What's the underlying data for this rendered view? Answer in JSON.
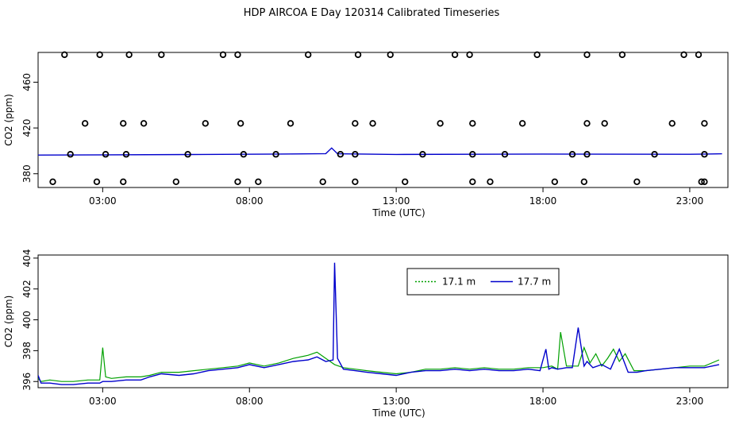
{
  "title": "HDP AIRCOA E  Day 120314  Calibrated Timeseries",
  "colors": {
    "series_17_1": "#00a000",
    "series_17_7": "#0000cc",
    "axis": "#000000"
  },
  "chart_data": [
    {
      "type": "line",
      "panel": "top",
      "xlabel": "Time (UTC)",
      "ylabel": "CO2 (ppm)",
      "xlim": [
        0.8,
        24.3
      ],
      "ylim": [
        368,
        486
      ],
      "xticks": [
        3,
        8,
        13,
        18,
        23
      ],
      "xtick_labels": [
        "03:00",
        "08:00",
        "13:00",
        "18:00",
        "23:00"
      ],
      "yticks": [
        380,
        420,
        460
      ],
      "ytick_labels": [
        "380",
        "420",
        "460"
      ],
      "grid": false,
      "legend": "none",
      "series": [
        {
          "values_x": [
            0.8,
            3.0,
            6.0,
            9.0,
            10.6,
            10.8,
            11.0,
            13.0,
            18.0,
            23.0,
            24.1
          ],
          "values_y": [
            396.3,
            396.5,
            396.8,
            397.2,
            397.6,
            402.5,
            397.4,
            396.9,
            397.2,
            397.0,
            397.4
          ]
        }
      ],
      "calibration_points": [
        {
          "x": 1.7,
          "y": 484
        },
        {
          "x": 1.3,
          "y": 373
        },
        {
          "x": 1.9,
          "y": 397
        },
        {
          "x": 2.4,
          "y": 424
        },
        {
          "x": 2.9,
          "y": 484
        },
        {
          "x": 2.8,
          "y": 373
        },
        {
          "x": 3.1,
          "y": 397
        },
        {
          "x": 3.7,
          "y": 424
        },
        {
          "x": 3.9,
          "y": 484
        },
        {
          "x": 3.7,
          "y": 373
        },
        {
          "x": 3.8,
          "y": 397
        },
        {
          "x": 4.4,
          "y": 424
        },
        {
          "x": 5.0,
          "y": 484
        },
        {
          "x": 5.5,
          "y": 373
        },
        {
          "x": 5.9,
          "y": 397
        },
        {
          "x": 6.5,
          "y": 424
        },
        {
          "x": 7.1,
          "y": 484
        },
        {
          "x": 7.6,
          "y": 373
        },
        {
          "x": 7.8,
          "y": 397
        },
        {
          "x": 7.7,
          "y": 424
        },
        {
          "x": 7.6,
          "y": 484
        },
        {
          "x": 8.3,
          "y": 373
        },
        {
          "x": 8.9,
          "y": 397
        },
        {
          "x": 9.4,
          "y": 424
        },
        {
          "x": 10.0,
          "y": 484
        },
        {
          "x": 10.5,
          "y": 373
        },
        {
          "x": 11.1,
          "y": 397
        },
        {
          "x": 11.6,
          "y": 424
        },
        {
          "x": 11.7,
          "y": 484
        },
        {
          "x": 11.6,
          "y": 373
        },
        {
          "x": 11.6,
          "y": 397
        },
        {
          "x": 12.2,
          "y": 424
        },
        {
          "x": 12.8,
          "y": 484
        },
        {
          "x": 13.3,
          "y": 373
        },
        {
          "x": 13.9,
          "y": 397
        },
        {
          "x": 14.5,
          "y": 424
        },
        {
          "x": 15.0,
          "y": 484
        },
        {
          "x": 15.6,
          "y": 373
        },
        {
          "x": 15.6,
          "y": 397
        },
        {
          "x": 15.6,
          "y": 424
        },
        {
          "x": 15.5,
          "y": 484
        },
        {
          "x": 16.2,
          "y": 373
        },
        {
          "x": 16.7,
          "y": 397
        },
        {
          "x": 17.3,
          "y": 424
        },
        {
          "x": 17.8,
          "y": 484
        },
        {
          "x": 18.4,
          "y": 373
        },
        {
          "x": 19.0,
          "y": 397
        },
        {
          "x": 19.5,
          "y": 424
        },
        {
          "x": 19.5,
          "y": 484
        },
        {
          "x": 19.4,
          "y": 373
        },
        {
          "x": 19.5,
          "y": 397
        },
        {
          "x": 20.1,
          "y": 424
        },
        {
          "x": 20.7,
          "y": 484
        },
        {
          "x": 21.2,
          "y": 373
        },
        {
          "x": 21.8,
          "y": 397
        },
        {
          "x": 22.4,
          "y": 424
        },
        {
          "x": 22.8,
          "y": 484
        },
        {
          "x": 23.4,
          "y": 373
        },
        {
          "x": 23.5,
          "y": 397
        },
        {
          "x": 23.5,
          "y": 424
        },
        {
          "x": 23.3,
          "y": 484
        },
        {
          "x": 23.5,
          "y": 373
        }
      ]
    },
    {
      "type": "line",
      "panel": "bottom",
      "xlabel": "Time (UTC)",
      "ylabel": "CO2 (ppm)",
      "xlim": [
        0.8,
        24.3
      ],
      "ylim": [
        395.6,
        404.2
      ],
      "xticks": [
        3,
        8,
        13,
        18,
        23
      ],
      "xtick_labels": [
        "03:00",
        "08:00",
        "13:00",
        "18:00",
        "23:00"
      ],
      "yticks": [
        396,
        398,
        400,
        402,
        404
      ],
      "ytick_labels": [
        "396",
        "398",
        "400",
        "402",
        "404"
      ],
      "grid": false,
      "legend": "top-center",
      "series": [
        {
          "name": "17.1 m",
          "values_x": [
            0.8,
            0.9,
            1.2,
            1.6,
            2.0,
            2.5,
            2.9,
            3.0,
            3.1,
            3.3,
            3.8,
            4.3,
            4.6,
            5.0,
            5.6,
            6.1,
            6.6,
            7.1,
            7.6,
            8.0,
            8.5,
            9.0,
            9.5,
            10.0,
            10.3,
            10.6,
            10.9,
            11.2,
            11.6,
            12.0,
            12.5,
            13.0,
            13.5,
            14.0,
            14.5,
            15.0,
            15.5,
            16.0,
            16.5,
            17.0,
            17.5,
            18.0,
            18.3,
            18.5,
            18.6,
            18.8,
            19.0,
            19.2,
            19.4,
            19.6,
            19.8,
            20.0,
            20.2,
            20.4,
            20.6,
            20.8,
            21.1,
            21.5,
            22.0,
            22.5,
            23.0,
            23.5,
            24.0
          ],
          "values_y": [
            396.2,
            396.0,
            396.1,
            396.0,
            396.0,
            396.1,
            396.1,
            398.2,
            396.3,
            396.2,
            396.3,
            396.3,
            396.4,
            396.6,
            396.6,
            396.7,
            396.8,
            396.9,
            397.0,
            397.2,
            397.0,
            397.2,
            397.5,
            397.7,
            397.9,
            397.5,
            397.1,
            396.9,
            396.8,
            396.7,
            396.6,
            396.5,
            396.6,
            396.8,
            396.8,
            396.9,
            396.8,
            396.9,
            396.8,
            396.8,
            396.9,
            396.9,
            397.0,
            396.8,
            399.2,
            397.0,
            397.0,
            397.0,
            398.2,
            397.2,
            397.8,
            397.0,
            397.5,
            398.1,
            397.3,
            397.8,
            396.7,
            396.7,
            396.8,
            396.9,
            397.0,
            397.0,
            397.4
          ]
        },
        {
          "name": "17.7 m",
          "values_x": [
            0.8,
            0.9,
            1.2,
            1.6,
            2.0,
            2.5,
            2.9,
            3.0,
            3.3,
            3.8,
            4.3,
            4.6,
            5.0,
            5.6,
            6.1,
            6.6,
            7.1,
            7.6,
            8.0,
            8.5,
            9.0,
            9.5,
            10.0,
            10.3,
            10.6,
            10.85,
            10.9,
            11.0,
            11.2,
            11.6,
            12.0,
            12.5,
            13.0,
            13.5,
            14.0,
            14.5,
            15.0,
            15.5,
            16.0,
            16.5,
            17.0,
            17.5,
            17.9,
            18.1,
            18.2,
            18.3,
            18.5,
            18.8,
            19.0,
            19.2,
            19.4,
            19.5,
            19.7,
            20.0,
            20.3,
            20.6,
            20.9,
            21.2,
            21.5,
            22.0,
            22.5,
            23.0,
            23.5,
            24.0
          ],
          "values_y": [
            396.4,
            395.9,
            395.9,
            395.8,
            395.8,
            395.9,
            395.9,
            396.0,
            396.0,
            396.1,
            396.1,
            396.3,
            396.5,
            396.4,
            396.5,
            396.7,
            396.8,
            396.9,
            397.1,
            396.9,
            397.1,
            397.3,
            397.4,
            397.6,
            397.3,
            397.4,
            403.7,
            397.5,
            396.8,
            396.7,
            396.6,
            396.5,
            396.4,
            396.6,
            396.7,
            396.7,
            396.8,
            396.7,
            396.8,
            396.7,
            396.7,
            396.8,
            396.7,
            398.1,
            396.8,
            396.9,
            396.8,
            396.9,
            396.9,
            399.5,
            397.0,
            397.3,
            396.9,
            397.1,
            396.8,
            398.1,
            396.6,
            396.6,
            396.7,
            396.8,
            396.9,
            396.9,
            396.9,
            397.1
          ]
        }
      ]
    }
  ]
}
